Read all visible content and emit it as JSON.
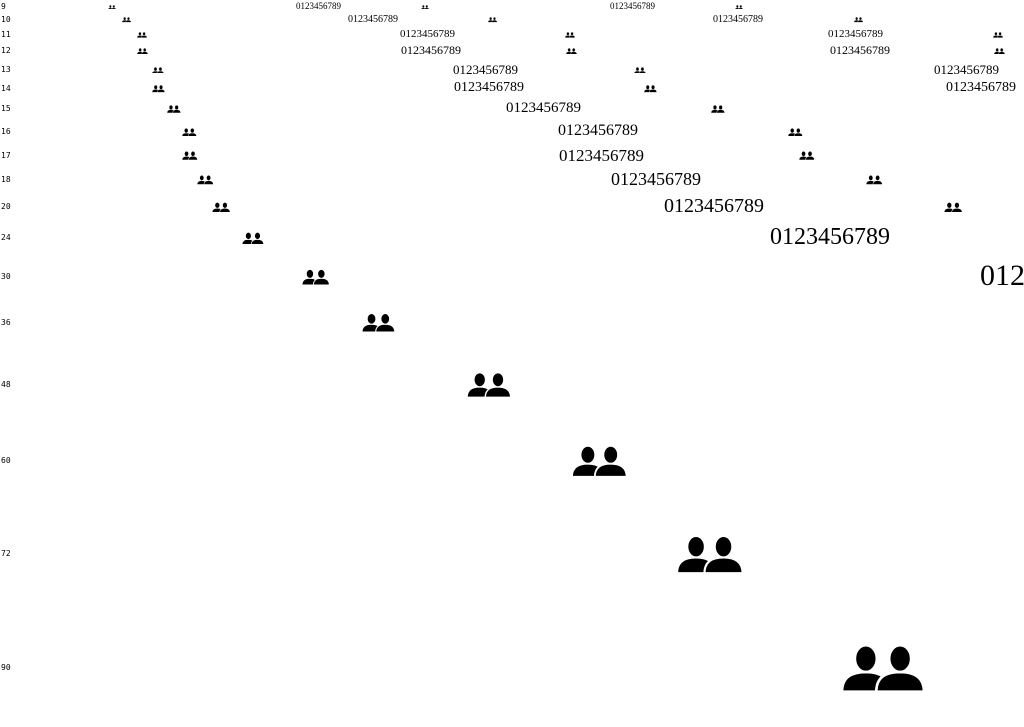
{
  "sample_text": "0123456789",
  "icon": "users-icon",
  "ink_color": "#000000",
  "background_color": "#ffffff",
  "rows": [
    {
      "label": "9"
    },
    {
      "label": "10"
    },
    {
      "label": "11"
    },
    {
      "label": "12"
    },
    {
      "label": "13"
    },
    {
      "label": "14"
    },
    {
      "label": "15"
    },
    {
      "label": "16"
    },
    {
      "label": "17"
    },
    {
      "label": "18"
    },
    {
      "label": "20"
    },
    {
      "label": "24"
    },
    {
      "label": "30"
    },
    {
      "label": "36"
    },
    {
      "label": "48"
    },
    {
      "label": "60"
    },
    {
      "label": "72"
    },
    {
      "label": "90"
    }
  ]
}
